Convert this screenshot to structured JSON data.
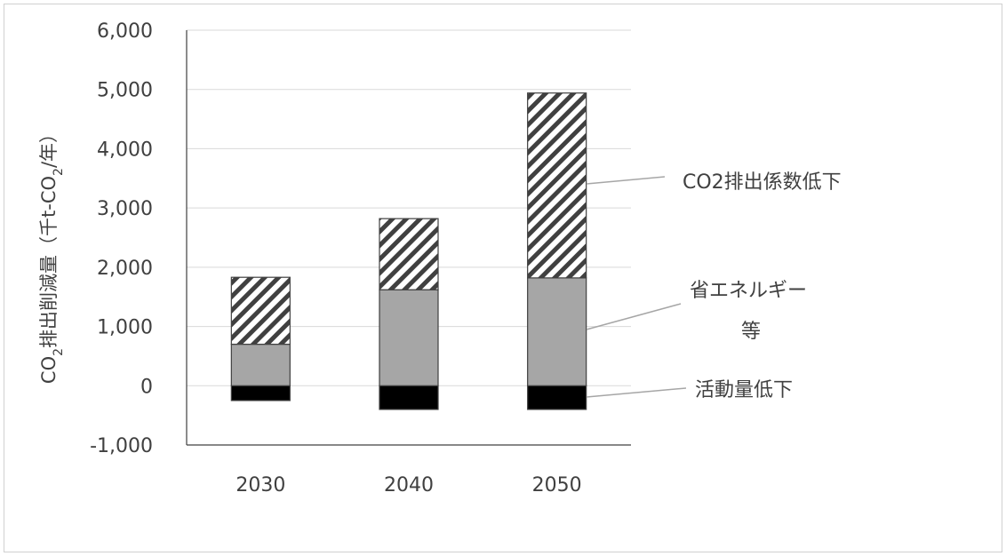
{
  "chart_data": {
    "type": "bar",
    "stacked": true,
    "categories": [
      "2030",
      "2040",
      "2050"
    ],
    "series": [
      {
        "name": "活動量低下",
        "values": [
          -250,
          -400,
          -400
        ],
        "color": "#000000",
        "pattern": "solid"
      },
      {
        "name": "省エネルギー等",
        "values": [
          700,
          1620,
          1820
        ],
        "color": "#a6a6a6",
        "pattern": "solid"
      },
      {
        "name": "CO2排出係数低下",
        "values": [
          1130,
          1200,
          3120
        ],
        "color": "#ffffff",
        "pattern": "diagonal-hatch"
      }
    ],
    "ylabel": {
      "prefix": "CO",
      "sub": "2",
      "middle": "排出削減量（千t-CO",
      "sub2": "2",
      "suffix": "/年）"
    },
    "ylim": [
      -1000,
      6000
    ],
    "ytick_labels": [
      "-1,000",
      "0",
      "1,000",
      "2,000",
      "3,000",
      "4,000",
      "5,000",
      "6,000"
    ],
    "grid": true,
    "legend_labels": {
      "coef": "CO2排出係数低下",
      "saving_line1": "省エネルギー",
      "saving_line2": "等",
      "activity": "活動量低下"
    }
  }
}
